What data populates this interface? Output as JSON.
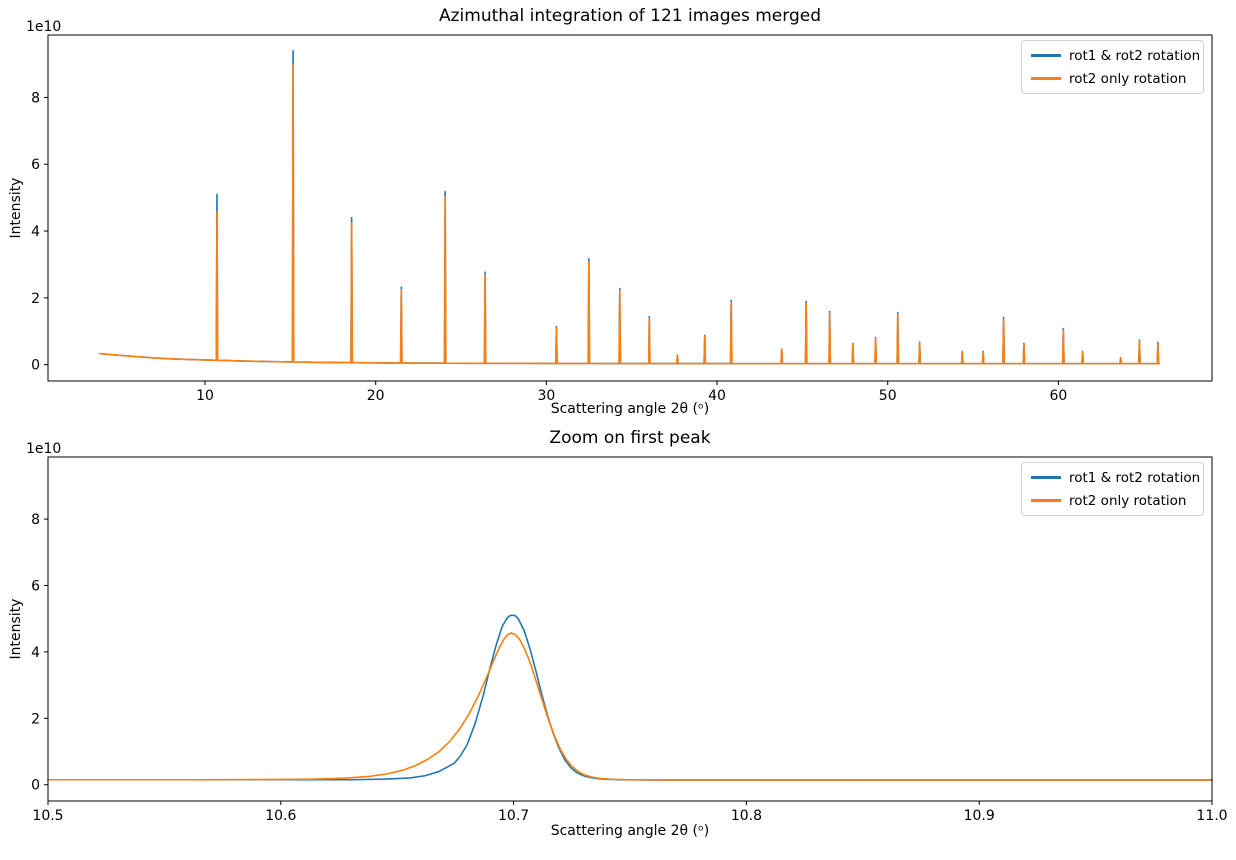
{
  "figure": {
    "background": "#ffffff",
    "text_color": "#000000"
  },
  "chart_data": [
    {
      "type": "line",
      "title": "Azimuthal integration of 121 images merged",
      "xlabel": "Scattering angle 2θ (ᵒ)",
      "ylabel": "Intensity",
      "offset_text": "1e10",
      "legend": [
        "rot1 & rot2 rotation",
        "rot2 only rotation"
      ],
      "legend_position": "upper right",
      "colors": [
        "#1f77b4",
        "#ff7f0e"
      ],
      "grid": false,
      "xlim": [
        0.8,
        69.0
      ],
      "ylim_e10": [
        -0.49,
        9.87
      ],
      "xticks": [
        {
          "value": 10,
          "label": "10"
        },
        {
          "value": 20,
          "label": "20"
        },
        {
          "value": 30,
          "label": "30"
        },
        {
          "value": 40,
          "label": "40"
        },
        {
          "value": 50,
          "label": "50"
        },
        {
          "value": 60,
          "label": "60"
        }
      ],
      "yticks": [
        {
          "value": 0,
          "label": "0"
        },
        {
          "value": 2,
          "label": "2"
        },
        {
          "value": 4,
          "label": "4"
        },
        {
          "value": 6,
          "label": "6"
        },
        {
          "value": 8,
          "label": "8"
        }
      ],
      "series": [
        {
          "name": "rot1 & rot2 rotation"
        },
        {
          "name": "rot2 only rotation"
        }
      ],
      "background_points_e10": [
        [
          3.85,
          0.33
        ],
        [
          4.5,
          0.3
        ],
        [
          5,
          0.28
        ],
        [
          6,
          0.24
        ],
        [
          7,
          0.2
        ],
        [
          8,
          0.175
        ],
        [
          9,
          0.155
        ],
        [
          10,
          0.14
        ],
        [
          11,
          0.125
        ],
        [
          12,
          0.11
        ],
        [
          13,
          0.1
        ],
        [
          14,
          0.09
        ],
        [
          15,
          0.08
        ],
        [
          16,
          0.073
        ],
        [
          17,
          0.067
        ],
        [
          18,
          0.062
        ],
        [
          19,
          0.057
        ],
        [
          20,
          0.053
        ],
        [
          22,
          0.047
        ],
        [
          24,
          0.043
        ],
        [
          26,
          0.04
        ],
        [
          28,
          0.038
        ],
        [
          30,
          0.036
        ],
        [
          33,
          0.034
        ],
        [
          36,
          0.032
        ],
        [
          40,
          0.031
        ],
        [
          45,
          0.03
        ],
        [
          50,
          0.03
        ],
        [
          55,
          0.03
        ],
        [
          60,
          0.03
        ],
        [
          65.9,
          0.03
        ]
      ],
      "peaks": [
        {
          "angle": 10.7,
          "heights_e10": [
            5.1,
            4.57
          ]
        },
        {
          "angle": 15.16,
          "heights_e10": [
            9.4,
            8.98
          ]
        },
        {
          "angle": 18.59,
          "heights_e10": [
            4.4,
            4.25
          ]
        },
        {
          "angle": 21.5,
          "heights_e10": [
            2.32,
            2.25
          ]
        },
        {
          "angle": 24.07,
          "heights_e10": [
            5.18,
            5.02
          ]
        },
        {
          "angle": 26.41,
          "heights_e10": [
            2.77,
            2.69
          ]
        },
        {
          "angle": 30.59,
          "heights_e10": [
            1.14,
            1.1
          ]
        },
        {
          "angle": 32.49,
          "heights_e10": [
            3.17,
            3.08
          ]
        },
        {
          "angle": 34.3,
          "heights_e10": [
            2.28,
            2.21
          ]
        },
        {
          "angle": 36.03,
          "heights_e10": [
            1.44,
            1.39
          ]
        },
        {
          "angle": 37.68,
          "heights_e10": [
            0.28,
            0.26
          ]
        },
        {
          "angle": 39.28,
          "heights_e10": [
            0.88,
            0.85
          ]
        },
        {
          "angle": 40.83,
          "heights_e10": [
            1.92,
            1.86
          ]
        },
        {
          "angle": 43.79,
          "heights_e10": [
            0.46,
            0.44
          ]
        },
        {
          "angle": 45.22,
          "heights_e10": [
            1.89,
            1.83
          ]
        },
        {
          "angle": 46.6,
          "heights_e10": [
            1.59,
            1.54
          ]
        },
        {
          "angle": 47.96,
          "heights_e10": [
            0.63,
            0.6
          ]
        },
        {
          "angle": 49.29,
          "heights_e10": [
            0.81,
            0.78
          ]
        },
        {
          "angle": 50.59,
          "heights_e10": [
            1.56,
            1.51
          ]
        },
        {
          "angle": 51.87,
          "heights_e10": [
            0.67,
            0.64
          ]
        },
        {
          "angle": 54.37,
          "heights_e10": [
            0.4,
            0.38
          ]
        },
        {
          "angle": 55.59,
          "heights_e10": [
            0.4,
            0.38
          ]
        },
        {
          "angle": 56.79,
          "heights_e10": [
            1.41,
            1.36
          ]
        },
        {
          "angle": 57.98,
          "heights_e10": [
            0.64,
            0.61
          ]
        },
        {
          "angle": 60.29,
          "heights_e10": [
            1.08,
            1.04
          ]
        },
        {
          "angle": 61.42,
          "heights_e10": [
            0.4,
            0.38
          ]
        },
        {
          "angle": 63.65,
          "heights_e10": [
            0.21,
            0.2
          ]
        },
        {
          "angle": 64.75,
          "heights_e10": [
            0.73,
            0.7
          ]
        },
        {
          "angle": 65.83,
          "heights_e10": [
            0.67,
            0.64
          ]
        }
      ]
    },
    {
      "type": "line",
      "title": "Zoom on first peak",
      "xlabel": "Scattering angle 2θ (ᵒ)",
      "ylabel": "Intensity",
      "offset_text": "1e10",
      "legend": [
        "rot1 & rot2 rotation",
        "rot2 only rotation"
      ],
      "legend_position": "upper right",
      "colors": [
        "#1f77b4",
        "#ff7f0e"
      ],
      "grid": false,
      "xlim": [
        10.5,
        11.0
      ],
      "ylim_e10": [
        -0.49,
        9.87
      ],
      "xticks": [
        {
          "value": 10.5,
          "label": "10.5"
        },
        {
          "value": 10.6,
          "label": "10.6"
        },
        {
          "value": 10.7,
          "label": "10.7"
        },
        {
          "value": 10.8,
          "label": "10.8"
        },
        {
          "value": 10.9,
          "label": "10.9"
        },
        {
          "value": 11.0,
          "label": "11.0"
        }
      ],
      "yticks": [
        {
          "value": 0,
          "label": "0"
        },
        {
          "value": 2,
          "label": "2"
        },
        {
          "value": 4,
          "label": "4"
        },
        {
          "value": 6,
          "label": "6"
        },
        {
          "value": 8,
          "label": "8"
        }
      ],
      "series": [
        {
          "name": "rot1 & rot2 rotation",
          "points": [
            [
              10.5,
              0.15
            ],
            [
              10.56,
              0.15
            ],
            [
              10.6,
              0.15
            ],
            [
              10.63,
              0.15
            ],
            [
              10.645,
              0.17
            ],
            [
              10.655,
              0.2
            ],
            [
              10.662,
              0.27
            ],
            [
              10.668,
              0.4
            ],
            [
              10.672,
              0.55
            ],
            [
              10.6745,
              0.65
            ],
            [
              10.677,
              0.85
            ],
            [
              10.68,
              1.2
            ],
            [
              10.6835,
              1.85
            ],
            [
              10.687,
              2.7
            ],
            [
              10.69,
              3.55
            ],
            [
              10.6925,
              4.2
            ],
            [
              10.695,
              4.75
            ],
            [
              10.697,
              5.0
            ],
            [
              10.6985,
              5.1
            ],
            [
              10.7005,
              5.1
            ],
            [
              10.702,
              5.0
            ],
            [
              10.7045,
              4.65
            ],
            [
              10.707,
              4.1
            ],
            [
              10.7095,
              3.45
            ],
            [
              10.712,
              2.75
            ],
            [
              10.7145,
              2.1
            ],
            [
              10.717,
              1.55
            ],
            [
              10.7195,
              1.1
            ],
            [
              10.722,
              0.75
            ],
            [
              10.7245,
              0.52
            ],
            [
              10.727,
              0.37
            ],
            [
              10.73,
              0.27
            ],
            [
              10.7335,
              0.21
            ],
            [
              10.738,
              0.17
            ],
            [
              10.745,
              0.15
            ],
            [
              10.76,
              0.145
            ],
            [
              10.8,
              0.14
            ],
            [
              10.85,
              0.14
            ],
            [
              10.9,
              0.14
            ],
            [
              10.95,
              0.14
            ],
            [
              11.0,
              0.14
            ]
          ]
        },
        {
          "name": "rot2 only rotation",
          "points": [
            [
              10.5,
              0.15
            ],
            [
              10.56,
              0.15
            ],
            [
              10.6,
              0.16
            ],
            [
              10.615,
              0.17
            ],
            [
              10.628,
              0.2
            ],
            [
              10.638,
              0.25
            ],
            [
              10.646,
              0.33
            ],
            [
              10.6525,
              0.44
            ],
            [
              10.658,
              0.58
            ],
            [
              10.663,
              0.76
            ],
            [
              10.668,
              1.0
            ],
            [
              10.6725,
              1.3
            ],
            [
              10.677,
              1.7
            ],
            [
              10.681,
              2.15
            ],
            [
              10.685,
              2.7
            ],
            [
              10.6885,
              3.25
            ],
            [
              10.6915,
              3.75
            ],
            [
              10.694,
              4.15
            ],
            [
              10.696,
              4.4
            ],
            [
              10.6975,
              4.52
            ],
            [
              10.699,
              4.57
            ],
            [
              10.7008,
              4.52
            ],
            [
              10.7028,
              4.35
            ],
            [
              10.705,
              4.05
            ],
            [
              10.7075,
              3.6
            ],
            [
              10.71,
              3.05
            ],
            [
              10.7125,
              2.5
            ],
            [
              10.715,
              1.95
            ],
            [
              10.7175,
              1.48
            ],
            [
              10.72,
              1.08
            ],
            [
              10.7225,
              0.78
            ],
            [
              10.725,
              0.56
            ],
            [
              10.7275,
              0.41
            ],
            [
              10.73,
              0.31
            ],
            [
              10.733,
              0.24
            ],
            [
              10.737,
              0.19
            ],
            [
              10.742,
              0.165
            ],
            [
              10.75,
              0.15
            ],
            [
              10.77,
              0.145
            ],
            [
              10.8,
              0.145
            ],
            [
              10.85,
              0.14
            ],
            [
              10.9,
              0.14
            ],
            [
              10.95,
              0.14
            ],
            [
              11.0,
              0.14
            ]
          ]
        }
      ]
    }
  ]
}
